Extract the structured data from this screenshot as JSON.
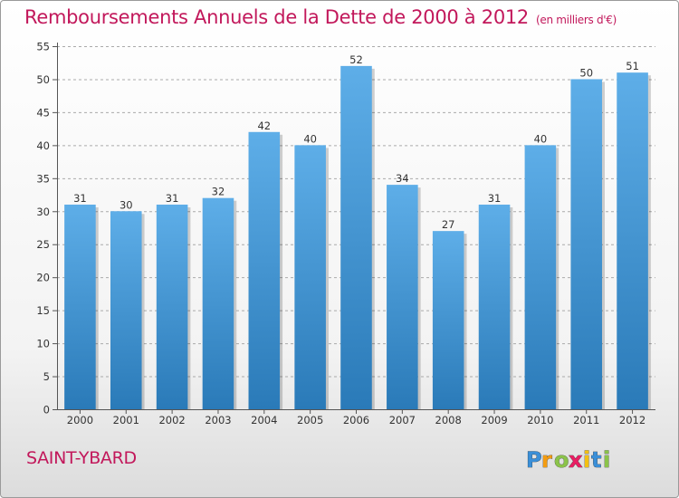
{
  "header": {
    "title": "Remboursements Annuels de la Dette de 2000 à 2012",
    "subtitle": "(en milliers d'€)"
  },
  "footer": {
    "commune": "SAINT-YBARD",
    "logo_text": "Proxiti"
  },
  "colors": {
    "bar_top": "#5eaee8",
    "bar_bottom": "#2a7ab8",
    "title": "#c2185b",
    "grid": "#aaaaaa"
  },
  "chart_data": {
    "type": "bar",
    "title": "Remboursements Annuels de la Dette de 2000 à 2012",
    "subtitle": "(en milliers d'€)",
    "xlabel": "",
    "ylabel": "",
    "categories": [
      "2000",
      "2001",
      "2002",
      "2003",
      "2004",
      "2005",
      "2006",
      "2007",
      "2008",
      "2009",
      "2010",
      "2011",
      "2012"
    ],
    "values": [
      31,
      30,
      31,
      32,
      42,
      40,
      52,
      34,
      27,
      31,
      40,
      50,
      51
    ],
    "ylim": [
      0,
      55
    ],
    "yticks": [
      0,
      5,
      10,
      15,
      20,
      25,
      30,
      35,
      40,
      45,
      50,
      55
    ],
    "grid": true,
    "legend": "none"
  }
}
